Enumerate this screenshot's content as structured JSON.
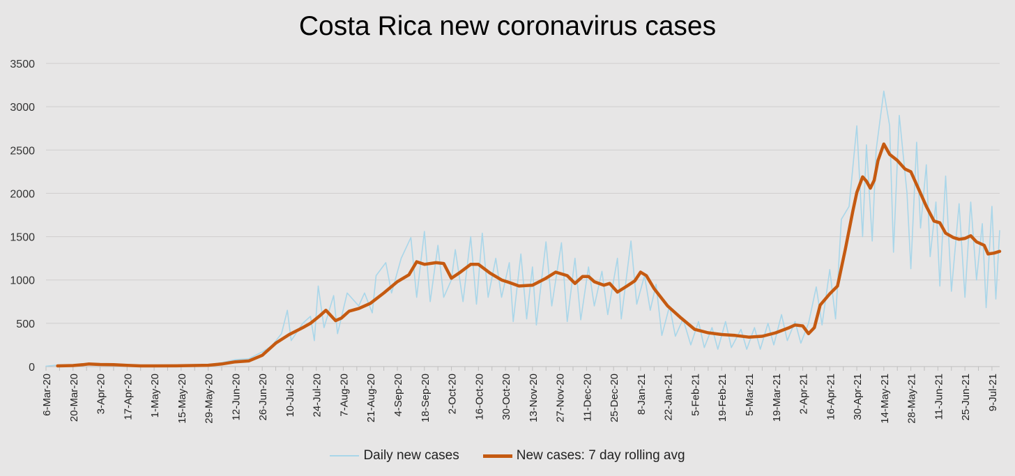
{
  "chart_data": {
    "type": "line",
    "title": "Costa Rica new coronavirus cases",
    "xlabel": "",
    "ylabel": "",
    "ylim": [
      0,
      3500
    ],
    "yticks": [
      0,
      500,
      1000,
      1500,
      2000,
      2500,
      3000,
      3500
    ],
    "grid": true,
    "legend_position": "bottom",
    "x_start": "2020-03-06",
    "x_end": "2021-07-13",
    "xtick_labels": [
      "6-Mar-20",
      "20-Mar-20",
      "3-Apr-20",
      "17-Apr-20",
      "1-May-20",
      "15-May-20",
      "29-May-20",
      "12-Jun-20",
      "26-Jun-20",
      "10-Jul-20",
      "24-Jul-20",
      "7-Aug-20",
      "21-Aug-20",
      "4-Sep-20",
      "18-Sep-20",
      "2-Oct-20",
      "16-Oct-20",
      "30-Oct-20",
      "13-Nov-20",
      "27-Nov-20",
      "11-Dec-20",
      "25-Dec-20",
      "8-Jan-21",
      "22-Jan-21",
      "5-Feb-21",
      "19-Feb-21",
      "5-Mar-21",
      "19-Mar-21",
      "2-Apr-21",
      "16-Apr-21",
      "30-Apr-21",
      "14-May-21",
      "28-May-21",
      "11-Jun-21",
      "25-Jun-21",
      "9-Jul-21"
    ],
    "series": [
      {
        "name": "Daily new cases",
        "color": "#a9d6e9",
        "style": "thin",
        "points": [
          [
            "2020-03-06",
            5
          ],
          [
            "2020-03-13",
            20
          ],
          [
            "2020-03-20",
            15
          ],
          [
            "2020-03-27",
            35
          ],
          [
            "2020-04-03",
            25
          ],
          [
            "2020-04-10",
            25
          ],
          [
            "2020-04-17",
            10
          ],
          [
            "2020-04-24",
            8
          ],
          [
            "2020-05-01",
            8
          ],
          [
            "2020-05-08",
            8
          ],
          [
            "2020-05-15",
            10
          ],
          [
            "2020-05-22",
            12
          ],
          [
            "2020-05-29",
            20
          ],
          [
            "2020-06-05",
            45
          ],
          [
            "2020-06-12",
            80
          ],
          [
            "2020-06-19",
            90
          ],
          [
            "2020-06-26",
            170
          ],
          [
            "2020-07-01",
            240
          ],
          [
            "2020-07-06",
            380
          ],
          [
            "2020-07-09",
            650
          ],
          [
            "2020-07-11",
            300
          ],
          [
            "2020-07-17",
            500
          ],
          [
            "2020-07-21",
            580
          ],
          [
            "2020-07-23",
            300
          ],
          [
            "2020-07-25",
            930
          ],
          [
            "2020-07-28",
            450
          ],
          [
            "2020-08-02",
            820
          ],
          [
            "2020-08-04",
            380
          ],
          [
            "2020-08-09",
            850
          ],
          [
            "2020-08-15",
            700
          ],
          [
            "2020-08-18",
            850
          ],
          [
            "2020-08-22",
            620
          ],
          [
            "2020-08-24",
            1050
          ],
          [
            "2020-08-29",
            1200
          ],
          [
            "2020-09-01",
            850
          ],
          [
            "2020-09-06",
            1250
          ],
          [
            "2020-09-11",
            1490
          ],
          [
            "2020-09-14",
            800
          ],
          [
            "2020-09-18",
            1560
          ],
          [
            "2020-09-21",
            750
          ],
          [
            "2020-09-25",
            1400
          ],
          [
            "2020-09-28",
            800
          ],
          [
            "2020-10-02",
            1000
          ],
          [
            "2020-10-04",
            1350
          ],
          [
            "2020-10-08",
            750
          ],
          [
            "2020-10-12",
            1500
          ],
          [
            "2020-10-15",
            720
          ],
          [
            "2020-10-18",
            1540
          ],
          [
            "2020-10-21",
            800
          ],
          [
            "2020-10-25",
            1250
          ],
          [
            "2020-10-28",
            800
          ],
          [
            "2020-11-01",
            1200
          ],
          [
            "2020-11-03",
            520
          ],
          [
            "2020-11-07",
            1300
          ],
          [
            "2020-11-10",
            550
          ],
          [
            "2020-11-13",
            1150
          ],
          [
            "2020-11-15",
            480
          ],
          [
            "2020-11-20",
            1440
          ],
          [
            "2020-11-23",
            700
          ],
          [
            "2020-11-28",
            1430
          ],
          [
            "2020-12-01",
            520
          ],
          [
            "2020-12-05",
            1250
          ],
          [
            "2020-12-08",
            540
          ],
          [
            "2020-12-12",
            1150
          ],
          [
            "2020-12-15",
            700
          ],
          [
            "2020-12-19",
            1100
          ],
          [
            "2020-12-22",
            600
          ],
          [
            "2020-12-27",
            1250
          ],
          [
            "2020-12-29",
            550
          ],
          [
            "2021-01-03",
            1450
          ],
          [
            "2021-01-06",
            720
          ],
          [
            "2021-01-10",
            1050
          ],
          [
            "2021-01-13",
            650
          ],
          [
            "2021-01-16",
            950
          ],
          [
            "2021-01-19",
            360
          ],
          [
            "2021-01-23",
            700
          ],
          [
            "2021-01-26",
            350
          ],
          [
            "2021-01-30",
            550
          ],
          [
            "2021-02-03",
            250
          ],
          [
            "2021-02-07",
            520
          ],
          [
            "2021-02-10",
            220
          ],
          [
            "2021-02-14",
            450
          ],
          [
            "2021-02-17",
            200
          ],
          [
            "2021-02-21",
            520
          ],
          [
            "2021-02-24",
            220
          ],
          [
            "2021-03-01",
            430
          ],
          [
            "2021-03-04",
            200
          ],
          [
            "2021-03-08",
            450
          ],
          [
            "2021-03-11",
            200
          ],
          [
            "2021-03-15",
            500
          ],
          [
            "2021-03-18",
            250
          ],
          [
            "2021-03-22",
            600
          ],
          [
            "2021-03-25",
            300
          ],
          [
            "2021-03-29",
            520
          ],
          [
            "2021-04-01",
            270
          ],
          [
            "2021-04-05",
            500
          ],
          [
            "2021-04-09",
            920
          ],
          [
            "2021-04-12",
            480
          ],
          [
            "2021-04-16",
            1120
          ],
          [
            "2021-04-19",
            550
          ],
          [
            "2021-04-22",
            1700
          ],
          [
            "2021-04-26",
            1850
          ],
          [
            "2021-04-30",
            2780
          ],
          [
            "2021-05-03",
            1500
          ],
          [
            "2021-05-05",
            2560
          ],
          [
            "2021-05-08",
            1450
          ],
          [
            "2021-05-10",
            2500
          ],
          [
            "2021-05-14",
            3180
          ],
          [
            "2021-05-17",
            2780
          ],
          [
            "2021-05-19",
            1320
          ],
          [
            "2021-05-22",
            2900
          ],
          [
            "2021-05-26",
            2000
          ],
          [
            "2021-05-28",
            1130
          ],
          [
            "2021-05-31",
            2590
          ],
          [
            "2021-06-02",
            1600
          ],
          [
            "2021-06-05",
            2330
          ],
          [
            "2021-06-07",
            1270
          ],
          [
            "2021-06-10",
            1900
          ],
          [
            "2021-06-12",
            930
          ],
          [
            "2021-06-15",
            2200
          ],
          [
            "2021-06-18",
            870
          ],
          [
            "2021-06-22",
            1880
          ],
          [
            "2021-06-25",
            800
          ],
          [
            "2021-06-28",
            1900
          ],
          [
            "2021-07-01",
            1000
          ],
          [
            "2021-07-04",
            1650
          ],
          [
            "2021-07-06",
            680
          ],
          [
            "2021-07-09",
            1850
          ],
          [
            "2021-07-11",
            780
          ],
          [
            "2021-07-13",
            1570
          ]
        ]
      },
      {
        "name": "New cases: 7 day rolling avg",
        "color": "#c55a11",
        "style": "thick",
        "points": [
          [
            "2020-03-12",
            8
          ],
          [
            "2020-03-20",
            12
          ],
          [
            "2020-03-25",
            22
          ],
          [
            "2020-03-28",
            30
          ],
          [
            "2020-04-03",
            24
          ],
          [
            "2020-04-10",
            22
          ],
          [
            "2020-04-17",
            14
          ],
          [
            "2020-04-24",
            8
          ],
          [
            "2020-05-01",
            8
          ],
          [
            "2020-05-15",
            10
          ],
          [
            "2020-05-29",
            15
          ],
          [
            "2020-06-05",
            30
          ],
          [
            "2020-06-12",
            55
          ],
          [
            "2020-06-19",
            65
          ],
          [
            "2020-06-26",
            130
          ],
          [
            "2020-07-03",
            270
          ],
          [
            "2020-07-10",
            370
          ],
          [
            "2020-07-17",
            450
          ],
          [
            "2020-07-21",
            500
          ],
          [
            "2020-07-26",
            590
          ],
          [
            "2020-07-29",
            650
          ],
          [
            "2020-08-03",
            530
          ],
          [
            "2020-08-06",
            560
          ],
          [
            "2020-08-10",
            640
          ],
          [
            "2020-08-15",
            670
          ],
          [
            "2020-08-21",
            730
          ],
          [
            "2020-08-28",
            850
          ],
          [
            "2020-09-04",
            980
          ],
          [
            "2020-09-10",
            1060
          ],
          [
            "2020-09-14",
            1210
          ],
          [
            "2020-09-18",
            1180
          ],
          [
            "2020-09-24",
            1200
          ],
          [
            "2020-09-28",
            1190
          ],
          [
            "2020-10-02",
            1020
          ],
          [
            "2020-10-06",
            1080
          ],
          [
            "2020-10-12",
            1180
          ],
          [
            "2020-10-16",
            1180
          ],
          [
            "2020-10-22",
            1080
          ],
          [
            "2020-10-28",
            1000
          ],
          [
            "2020-11-01",
            970
          ],
          [
            "2020-11-06",
            930
          ],
          [
            "2020-11-13",
            940
          ],
          [
            "2020-11-20",
            1020
          ],
          [
            "2020-11-25",
            1090
          ],
          [
            "2020-12-01",
            1050
          ],
          [
            "2020-12-05",
            960
          ],
          [
            "2020-12-09",
            1040
          ],
          [
            "2020-12-12",
            1040
          ],
          [
            "2020-12-15",
            980
          ],
          [
            "2020-12-20",
            940
          ],
          [
            "2020-12-23",
            960
          ],
          [
            "2020-12-27",
            860
          ],
          [
            "2021-01-01",
            930
          ],
          [
            "2021-01-05",
            990
          ],
          [
            "2021-01-08",
            1090
          ],
          [
            "2021-01-11",
            1050
          ],
          [
            "2021-01-15",
            900
          ],
          [
            "2021-01-22",
            700
          ],
          [
            "2021-01-29",
            560
          ],
          [
            "2021-02-05",
            430
          ],
          [
            "2021-02-12",
            390
          ],
          [
            "2021-02-19",
            370
          ],
          [
            "2021-02-26",
            360
          ],
          [
            "2021-03-05",
            340
          ],
          [
            "2021-03-12",
            350
          ],
          [
            "2021-03-19",
            390
          ],
          [
            "2021-03-26",
            450
          ],
          [
            "2021-03-29",
            480
          ],
          [
            "2021-04-02",
            470
          ],
          [
            "2021-04-05",
            380
          ],
          [
            "2021-04-08",
            450
          ],
          [
            "2021-04-11",
            710
          ],
          [
            "2021-04-16",
            840
          ],
          [
            "2021-04-20",
            930
          ],
          [
            "2021-04-24",
            1350
          ],
          [
            "2021-04-28",
            1800
          ],
          [
            "2021-04-30",
            2010
          ],
          [
            "2021-05-03",
            2190
          ],
          [
            "2021-05-05",
            2140
          ],
          [
            "2021-05-07",
            2060
          ],
          [
            "2021-05-09",
            2150
          ],
          [
            "2021-05-11",
            2380
          ],
          [
            "2021-05-14",
            2570
          ],
          [
            "2021-05-17",
            2450
          ],
          [
            "2021-05-21",
            2380
          ],
          [
            "2021-05-25",
            2280
          ],
          [
            "2021-05-28",
            2250
          ],
          [
            "2021-06-01",
            2050
          ],
          [
            "2021-06-05",
            1850
          ],
          [
            "2021-06-09",
            1680
          ],
          [
            "2021-06-12",
            1660
          ],
          [
            "2021-06-15",
            1540
          ],
          [
            "2021-06-19",
            1490
          ],
          [
            "2021-06-22",
            1470
          ],
          [
            "2021-06-25",
            1480
          ],
          [
            "2021-06-28",
            1510
          ],
          [
            "2021-07-01",
            1440
          ],
          [
            "2021-07-05",
            1400
          ],
          [
            "2021-07-07",
            1300
          ],
          [
            "2021-07-10",
            1310
          ],
          [
            "2021-07-13",
            1330
          ]
        ]
      }
    ]
  }
}
